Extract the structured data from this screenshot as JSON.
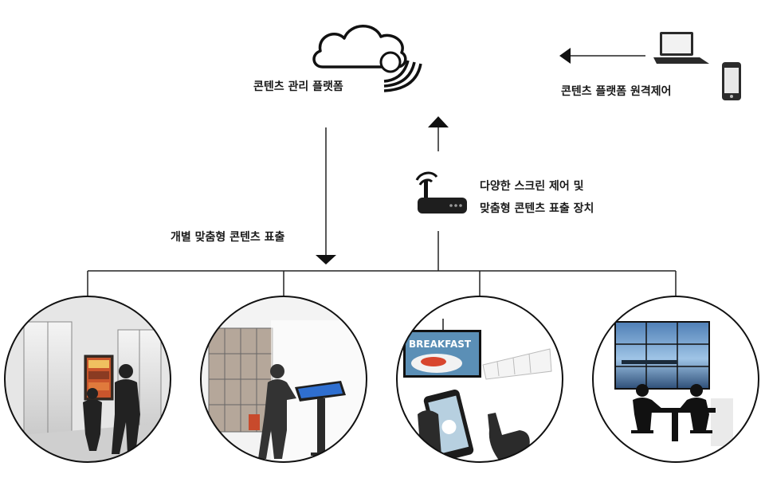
{
  "labels": {
    "platform": "콘텐츠 관리 플랫폼",
    "remote": "콘텐츠 플랫폼 원격제어",
    "device_line1": "다양한 스크린 제어 및",
    "device_line2": "맞춤형 콘텐츠 표출 장치",
    "delivery": "개별 맞춤형 콘텐츠 표출"
  },
  "screen_texts": {
    "menu_board": "BREAKFAST"
  },
  "icons": [
    "cloud-icon",
    "wifi-signal-icon",
    "laptop-icon",
    "smartphone-icon",
    "router-icon",
    "elevator-scene",
    "kiosk-scene",
    "mobile-touch-scene",
    "video-wall-scene"
  ],
  "colors": {
    "line": "#222222",
    "icon": "#111111",
    "circle_border": "#111111",
    "scene_gray": "#cfcfcf"
  }
}
